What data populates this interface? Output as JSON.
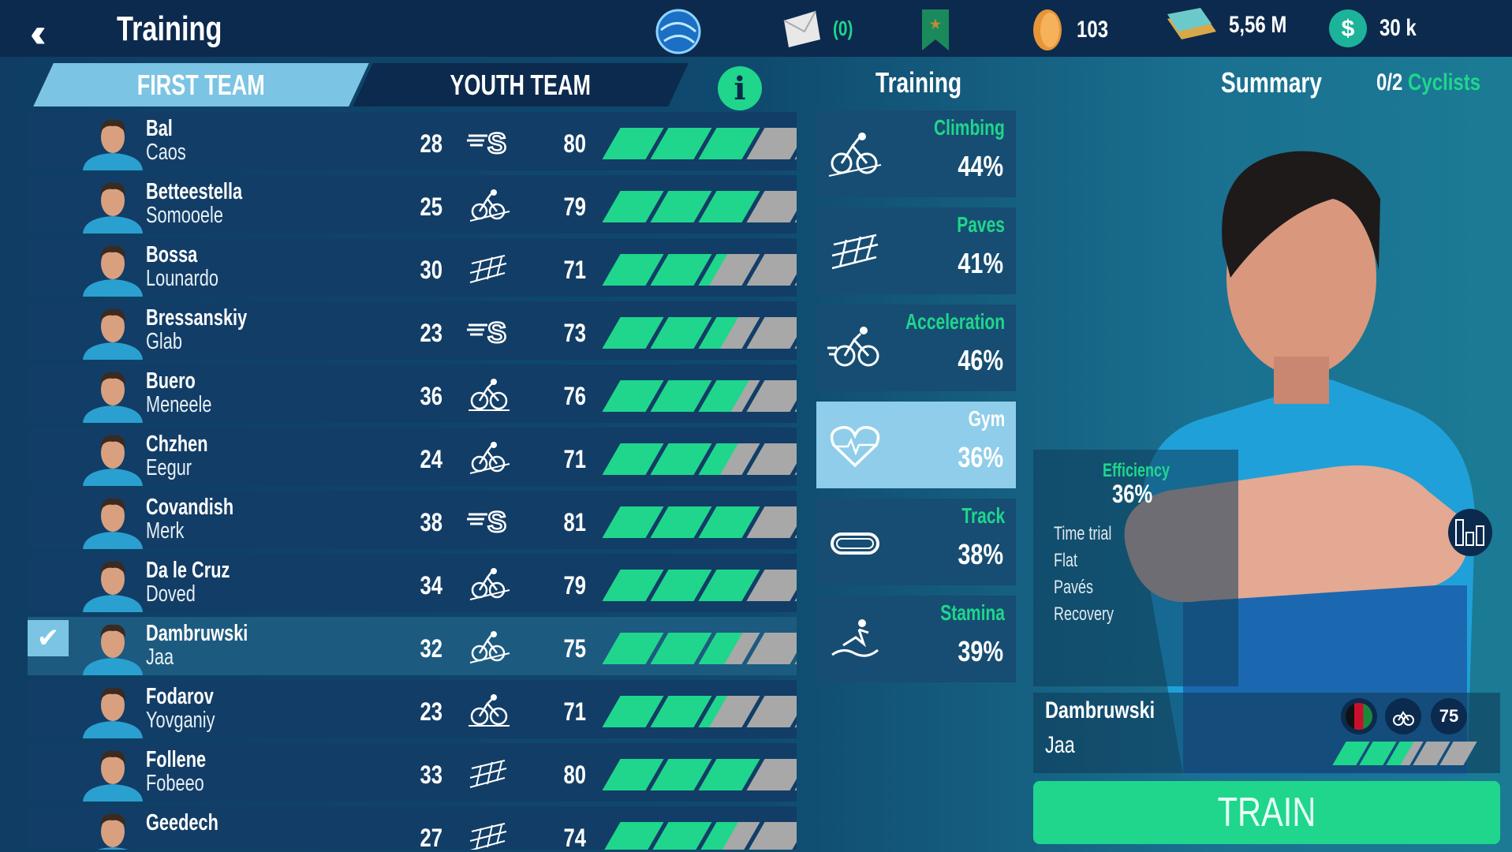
{
  "header": {
    "title": "Training",
    "back_icon": "double-chevron-left-icon",
    "mail_count": "(0)",
    "coins": "103",
    "cash": "5,56 M",
    "money": "30 k"
  },
  "tabs": {
    "first_team": "FIRST TEAM",
    "youth_team": "YOUTH TEAM",
    "info": "i"
  },
  "colors": {
    "accent": "#1fd68c",
    "tab_active": "#7cc4e4",
    "dark": "#0c2a4d",
    "bar_empty": "#a8a8a8"
  },
  "riders": [
    {
      "last": "Bal",
      "first": "Caos",
      "age": "28",
      "spec": "sprint",
      "rating": "80",
      "fill": 0.6,
      "selected": false
    },
    {
      "last": "Betteestella",
      "first": "Somooele",
      "age": "25",
      "spec": "climb",
      "rating": "79",
      "fill": 0.6,
      "selected": false
    },
    {
      "last": "Bossa",
      "first": "Lounardo",
      "age": "30",
      "spec": "paves",
      "rating": "71",
      "fill": 0.45,
      "selected": false
    },
    {
      "last": "Bressanskiy",
      "first": "Glab",
      "age": "23",
      "spec": "sprint",
      "rating": "73",
      "fill": 0.5,
      "selected": false
    },
    {
      "last": "Buero",
      "first": "Meneele",
      "age": "36",
      "spec": "flat",
      "rating": "76",
      "fill": 0.55,
      "selected": false
    },
    {
      "last": "Chzhen",
      "first": "Eegur",
      "age": "24",
      "spec": "climb",
      "rating": "71",
      "fill": 0.5,
      "selected": false
    },
    {
      "last": "Covandish",
      "first": "Merk",
      "age": "38",
      "spec": "sprint",
      "rating": "81",
      "fill": 0.6,
      "selected": false
    },
    {
      "last": "Da le Cruz",
      "first": "Doved",
      "age": "34",
      "spec": "climb",
      "rating": "79",
      "fill": 0.6,
      "selected": false
    },
    {
      "last": "Dambruwski",
      "first": "Jaa",
      "age": "32",
      "spec": "climb",
      "rating": "75",
      "fill": 0.52,
      "selected": true
    },
    {
      "last": "Fodarov",
      "first": "Yovganiy",
      "age": "23",
      "spec": "flat",
      "rating": "71",
      "fill": 0.45,
      "selected": false
    },
    {
      "last": "Follene",
      "first": "Fobeeo",
      "age": "33",
      "spec": "paves",
      "rating": "80",
      "fill": 0.6,
      "selected": false
    },
    {
      "last": "Geedech",
      "first": "",
      "age": "27",
      "spec": "paves",
      "rating": "74",
      "fill": 0.5,
      "selected": false
    }
  ],
  "training": {
    "title": "Training",
    "items": [
      {
        "label": "Climbing",
        "pct": "44%",
        "icon": "climbing-icon",
        "active": false
      },
      {
        "label": "Paves",
        "pct": "41%",
        "icon": "cobbles-icon",
        "active": false
      },
      {
        "label": "Acceleration",
        "pct": "46%",
        "icon": "acceleration-icon",
        "active": false
      },
      {
        "label": "Gym",
        "pct": "36%",
        "icon": "heart-icon",
        "active": true
      },
      {
        "label": "Track",
        "pct": "38%",
        "icon": "track-icon",
        "active": false
      },
      {
        "label": "Stamina",
        "pct": "39%",
        "icon": "stamina-icon",
        "active": false
      }
    ]
  },
  "summary": {
    "title": "Summary",
    "count": "0/2",
    "count_label": "Cyclists",
    "efficiency_label": "Efficiency",
    "efficiency": "36%",
    "attributes": [
      "Time trial",
      "Flat",
      "Pavés",
      "Recovery"
    ],
    "rider_last": "Dambruwski",
    "rider_first": "Jaa",
    "rating": "75",
    "fill": 0.52,
    "train_label": "TRAIN"
  }
}
